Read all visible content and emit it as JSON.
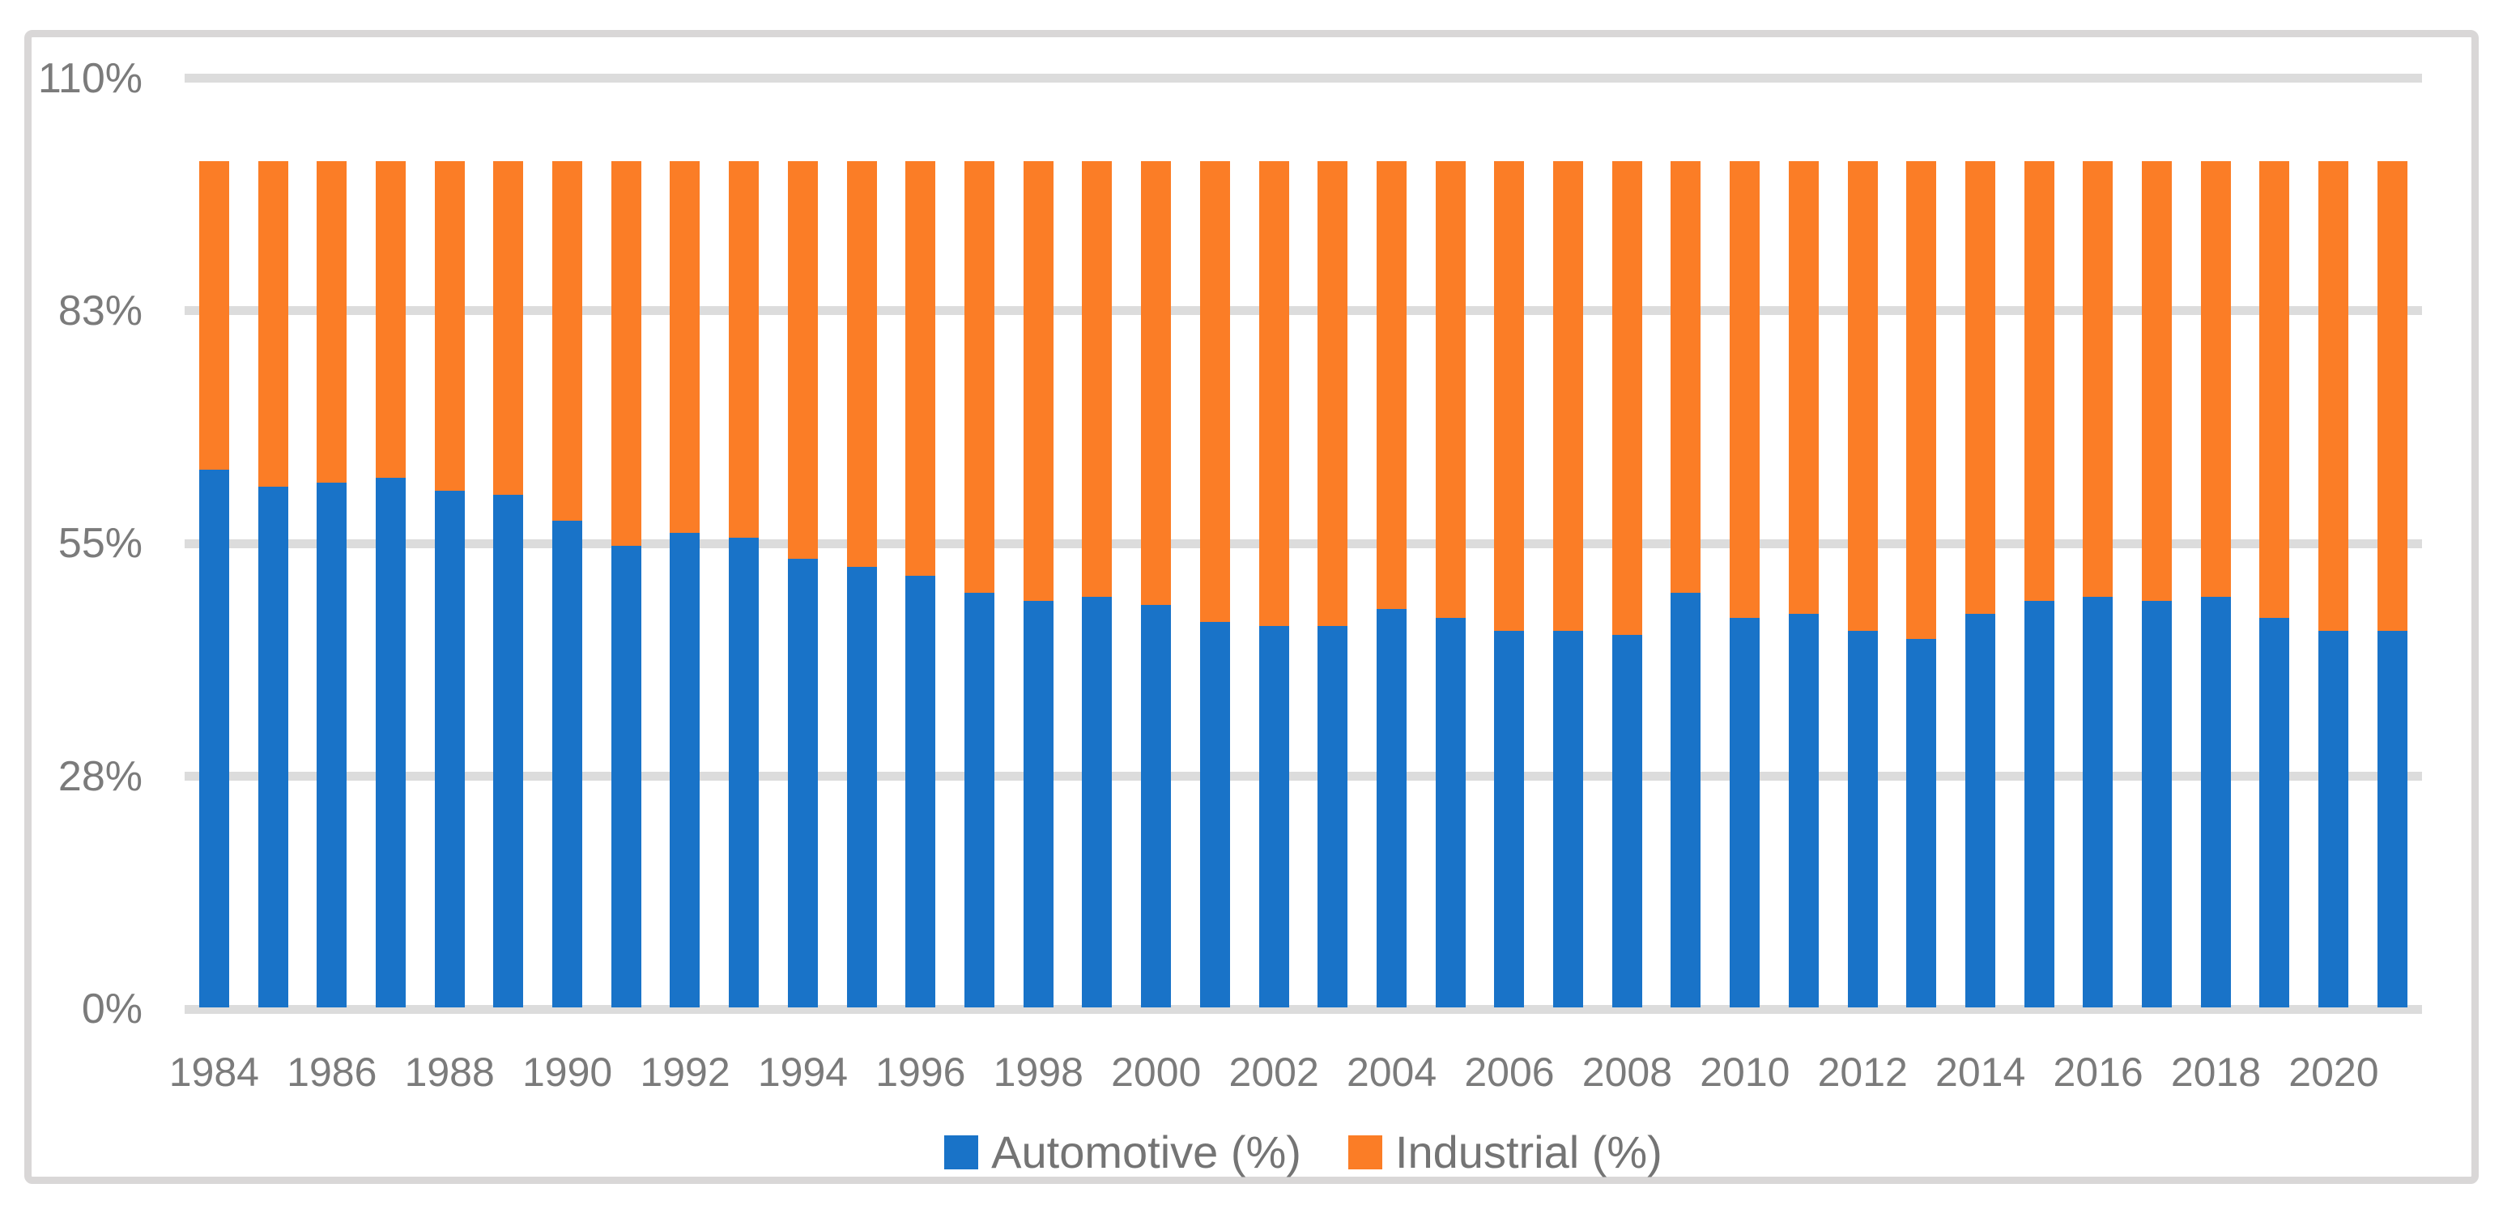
{
  "chart_data": {
    "type": "bar",
    "stacked": true,
    "stack_total": 100,
    "title": "",
    "xlabel": "",
    "ylabel": "",
    "ylim": [
      0,
      110
    ],
    "grid": "horizontal",
    "legend_position": "bottom-center",
    "x": [
      1984,
      1985,
      1986,
      1987,
      1988,
      1989,
      1990,
      1991,
      1992,
      1993,
      1994,
      1995,
      1996,
      1997,
      1998,
      1999,
      2000,
      2001,
      2002,
      2003,
      2004,
      2005,
      2006,
      2007,
      2008,
      2009,
      2010,
      2011,
      2012,
      2013,
      2014,
      2015,
      2016,
      2017,
      2018,
      2019,
      2020,
      2021
    ],
    "x_tick_labels": [
      "1984",
      "1986",
      "1988",
      "1990",
      "1992",
      "1994",
      "1996",
      "1998",
      "2000",
      "2002",
      "2004",
      "2006",
      "2008",
      "2010",
      "2012",
      "2014",
      "2016",
      "2018",
      "2020"
    ],
    "y_ticks": [
      {
        "value": 0,
        "label": "0%"
      },
      {
        "value": 27.5,
        "label": "28%"
      },
      {
        "value": 55,
        "label": "55%"
      },
      {
        "value": 82.5,
        "label": "83%"
      },
      {
        "value": 110,
        "label": "110%"
      }
    ],
    "series": [
      {
        "name": "Automotive (%)",
        "color": "#1973c8",
        "values": [
          63.5,
          61.5,
          62,
          62.5,
          61,
          60.5,
          57.5,
          54.5,
          56,
          55.5,
          53,
          52,
          51,
          49,
          48,
          48.5,
          47.5,
          45.5,
          45,
          45,
          47,
          46,
          44.5,
          44.5,
          44,
          49,
          46,
          46.5,
          44.5,
          43.5,
          46.5,
          48,
          48.5,
          48,
          48.5,
          46,
          44.5,
          44.5
        ]
      },
      {
        "name": "Industrial (%)",
        "color": "#fb7d26",
        "values": [
          36.5,
          38.5,
          38,
          37.5,
          39,
          39.5,
          42.5,
          45.5,
          44,
          44.5,
          47,
          48,
          49,
          51,
          52,
          51.5,
          52.5,
          54.5,
          55,
          55,
          53,
          54,
          55.5,
          55.5,
          56,
          51,
          54,
          53.5,
          55.5,
          56.5,
          53.5,
          52,
          51.5,
          52,
          51.5,
          54,
          55.5,
          55.5
        ]
      }
    ]
  },
  "colors": {
    "automotive": "#1973c8",
    "industrial": "#fb7d26",
    "gridline": "#dcdcdc",
    "frame_border": "#d9d7d7",
    "tick_text": "#7b7b7b",
    "legend_text": "#747474",
    "background": "#ffffff"
  }
}
